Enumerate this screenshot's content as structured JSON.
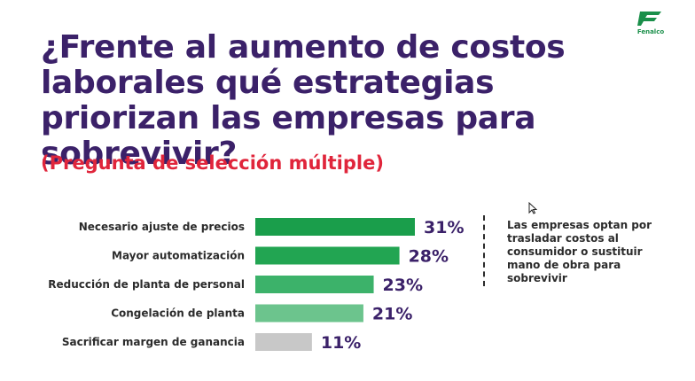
{
  "brand": {
    "name": "Fenalco",
    "accent": "#1a8f4a"
  },
  "header": {
    "title": "¿Frente al aumento de costos laborales qué estrategias priorizan las empresas para sobrevivir?",
    "subtitle": "(Pregunta de selección múltiple)"
  },
  "annotation": {
    "text": "Las empresas optan por trasladar costos al consumidor o sustituir mano de obra para sobrevivir"
  },
  "chart_data": {
    "type": "bar",
    "orientation": "horizontal",
    "categories": [
      "Necesario ajuste de precios",
      "Mayor automatización",
      "Reducción de planta de personal",
      "Congelación de planta",
      "Sacrificar margen de ganancia"
    ],
    "values": [
      31,
      28,
      23,
      21,
      11
    ],
    "value_labels": [
      "31%",
      "28%",
      "23%",
      "21%",
      "11%"
    ],
    "unit": "%",
    "colors": [
      "#1a9e4b",
      "#22a552",
      "#3cb26a",
      "#6cc48d",
      "#c8c8c8"
    ],
    "grid": false,
    "legend": "none"
  }
}
